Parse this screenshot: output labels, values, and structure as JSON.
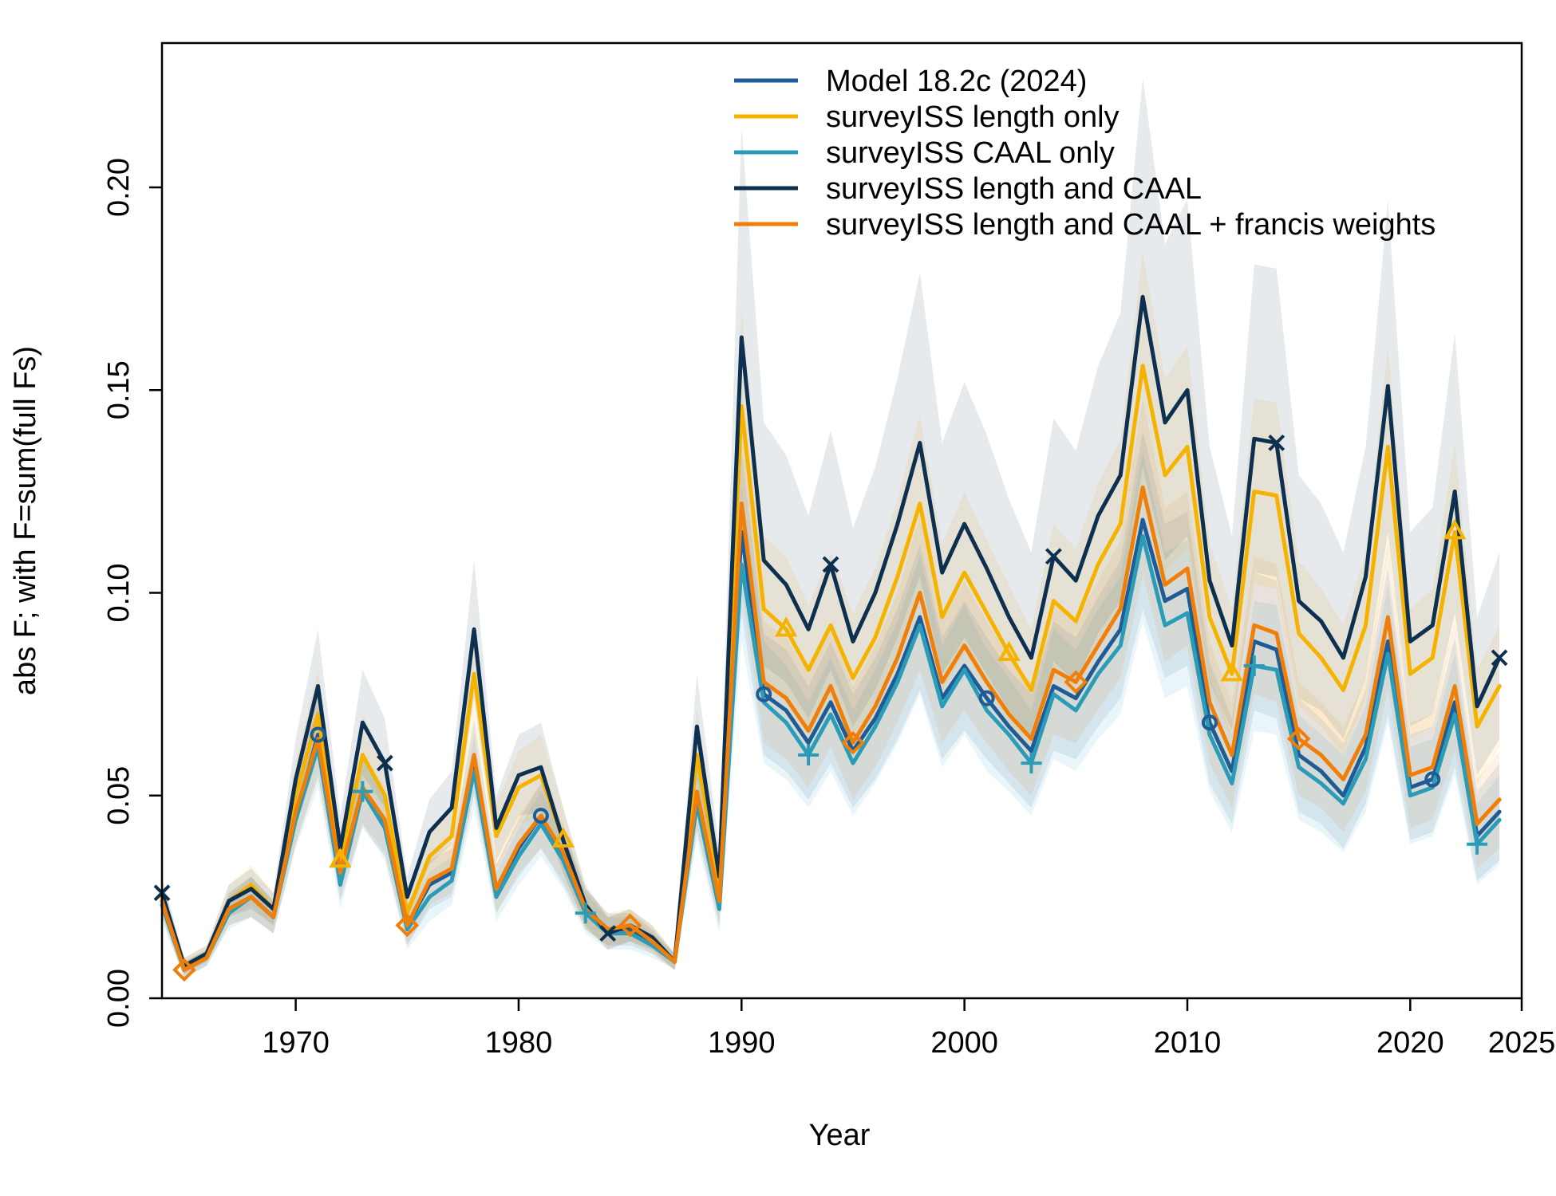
{
  "chart_data": {
    "type": "line",
    "xlabel": "Year",
    "ylabel": "abs F; with F=sum(full Fs)",
    "xlim": [
      1964,
      2025
    ],
    "ylim": [
      0,
      0.2
    ],
    "x_ticks": [
      1970,
      1980,
      1990,
      2000,
      2010,
      2020,
      2025
    ],
    "x_tick_labels": [
      "1970",
      "1980",
      "1990",
      "2000",
      "2010",
      "2020",
      "2025"
    ],
    "y_ticks": [
      0,
      0.05,
      0.1,
      0.15,
      0.2
    ],
    "y_tick_labels": [
      "0.00",
      "0.05",
      "0.10",
      "0.15",
      "0.20"
    ],
    "legend_position": "top-right",
    "grid": false,
    "x": [
      1964,
      1965,
      1966,
      1967,
      1968,
      1969,
      1970,
      1971,
      1972,
      1973,
      1974,
      1975,
      1976,
      1977,
      1978,
      1979,
      1980,
      1981,
      1982,
      1983,
      1984,
      1985,
      1986,
      1987,
      1988,
      1989,
      1990,
      1991,
      1992,
      1993,
      1994,
      1995,
      1996,
      1997,
      1998,
      1999,
      2000,
      2001,
      2002,
      2003,
      2004,
      2005,
      2006,
      2007,
      2008,
      2009,
      2010,
      2011,
      2012,
      2013,
      2014,
      2015,
      2016,
      2017,
      2018,
      2019,
      2020,
      2021,
      2022,
      2023,
      2024
    ],
    "series": [
      {
        "name": "Model 18.2c (2024)",
        "color": "#1f5b94",
        "marker": "circle",
        "values": [
          0.024,
          0.007,
          0.01,
          0.022,
          0.025,
          0.02,
          0.045,
          0.065,
          0.03,
          0.051,
          0.043,
          0.018,
          0.028,
          0.031,
          0.059,
          0.027,
          0.037,
          0.045,
          0.035,
          0.022,
          0.017,
          0.017,
          0.014,
          0.009,
          0.05,
          0.024,
          0.115,
          0.075,
          0.071,
          0.063,
          0.073,
          0.061,
          0.069,
          0.08,
          0.094,
          0.074,
          0.082,
          0.074,
          0.067,
          0.061,
          0.077,
          0.074,
          0.083,
          0.091,
          0.118,
          0.098,
          0.101,
          0.068,
          0.056,
          0.088,
          0.086,
          0.06,
          0.056,
          0.05,
          0.062,
          0.088,
          0.052,
          0.054,
          0.073,
          0.04,
          0.046
        ],
        "band_upper": [
          0.028,
          0.009,
          0.012,
          0.026,
          0.03,
          0.024,
          0.052,
          0.075,
          0.036,
          0.06,
          0.051,
          0.023,
          0.034,
          0.037,
          0.068,
          0.033,
          0.044,
          0.053,
          0.042,
          0.027,
          0.021,
          0.021,
          0.017,
          0.011,
          0.059,
          0.03,
          0.135,
          0.09,
          0.086,
          0.077,
          0.088,
          0.075,
          0.084,
          0.096,
          0.112,
          0.089,
          0.098,
          0.089,
          0.081,
          0.075,
          0.093,
          0.089,
          0.099,
          0.108,
          0.14,
          0.117,
          0.12,
          0.083,
          0.069,
          0.105,
          0.103,
          0.074,
          0.069,
          0.063,
          0.076,
          0.106,
          0.065,
          0.067,
          0.089,
          0.051,
          0.058
        ],
        "band_lower": [
          0.02,
          0.005,
          0.008,
          0.018,
          0.02,
          0.016,
          0.038,
          0.055,
          0.024,
          0.042,
          0.035,
          0.013,
          0.022,
          0.025,
          0.05,
          0.021,
          0.03,
          0.037,
          0.028,
          0.017,
          0.013,
          0.013,
          0.011,
          0.007,
          0.041,
          0.018,
          0.095,
          0.06,
          0.056,
          0.049,
          0.058,
          0.047,
          0.054,
          0.064,
          0.076,
          0.059,
          0.066,
          0.059,
          0.053,
          0.047,
          0.061,
          0.059,
          0.067,
          0.074,
          0.096,
          0.079,
          0.082,
          0.053,
          0.043,
          0.071,
          0.069,
          0.046,
          0.043,
          0.037,
          0.048,
          0.07,
          0.039,
          0.041,
          0.057,
          0.029,
          0.034
        ]
      },
      {
        "name": "surveyISS length only",
        "color": "#f5b300",
        "marker": "triangle",
        "values": [
          0.025,
          0.008,
          0.011,
          0.024,
          0.028,
          0.022,
          0.05,
          0.07,
          0.034,
          0.06,
          0.05,
          0.021,
          0.035,
          0.04,
          0.08,
          0.04,
          0.052,
          0.055,
          0.039,
          0.022,
          0.016,
          0.018,
          0.015,
          0.009,
          0.06,
          0.028,
          0.146,
          0.096,
          0.091,
          0.081,
          0.092,
          0.079,
          0.089,
          0.104,
          0.122,
          0.094,
          0.105,
          0.095,
          0.085,
          0.076,
          0.098,
          0.093,
          0.107,
          0.117,
          0.156,
          0.129,
          0.136,
          0.094,
          0.08,
          0.125,
          0.124,
          0.09,
          0.084,
          0.076,
          0.092,
          0.136,
          0.08,
          0.084,
          0.115,
          0.067,
          0.077
        ],
        "band_upper": [
          0.029,
          0.01,
          0.013,
          0.028,
          0.033,
          0.026,
          0.058,
          0.081,
          0.041,
          0.07,
          0.059,
          0.026,
          0.042,
          0.047,
          0.092,
          0.048,
          0.061,
          0.065,
          0.047,
          0.027,
          0.02,
          0.022,
          0.018,
          0.011,
          0.071,
          0.035,
          0.17,
          0.114,
          0.109,
          0.097,
          0.11,
          0.095,
          0.106,
          0.123,
          0.144,
          0.112,
          0.125,
          0.113,
          0.102,
          0.091,
          0.117,
          0.111,
          0.127,
          0.138,
          0.184,
          0.153,
          0.161,
          0.112,
          0.096,
          0.148,
          0.147,
          0.108,
          0.101,
          0.092,
          0.11,
          0.161,
          0.096,
          0.101,
          0.137,
          0.081,
          0.092
        ],
        "band_lower": [
          0.021,
          0.006,
          0.009,
          0.02,
          0.023,
          0.018,
          0.042,
          0.059,
          0.027,
          0.05,
          0.041,
          0.016,
          0.028,
          0.033,
          0.068,
          0.032,
          0.043,
          0.045,
          0.031,
          0.017,
          0.012,
          0.014,
          0.012,
          0.007,
          0.049,
          0.021,
          0.122,
          0.078,
          0.073,
          0.065,
          0.074,
          0.063,
          0.072,
          0.085,
          0.1,
          0.076,
          0.085,
          0.077,
          0.068,
          0.061,
          0.079,
          0.075,
          0.087,
          0.096,
          0.128,
          0.105,
          0.111,
          0.076,
          0.064,
          0.102,
          0.101,
          0.072,
          0.067,
          0.06,
          0.074,
          0.111,
          0.064,
          0.067,
          0.093,
          0.053,
          0.062
        ]
      },
      {
        "name": "surveyISS CAAL only",
        "color": "#2b9cb8",
        "marker": "plus",
        "values": [
          0.023,
          0.007,
          0.01,
          0.021,
          0.025,
          0.02,
          0.044,
          0.062,
          0.028,
          0.051,
          0.042,
          0.017,
          0.025,
          0.029,
          0.056,
          0.025,
          0.035,
          0.043,
          0.034,
          0.021,
          0.016,
          0.016,
          0.013,
          0.009,
          0.048,
          0.022,
          0.107,
          0.073,
          0.068,
          0.06,
          0.07,
          0.058,
          0.067,
          0.078,
          0.092,
          0.072,
          0.081,
          0.071,
          0.065,
          0.058,
          0.075,
          0.071,
          0.08,
          0.087,
          0.114,
          0.092,
          0.095,
          0.065,
          0.053,
          0.082,
          0.081,
          0.057,
          0.053,
          0.048,
          0.059,
          0.085,
          0.05,
          0.052,
          0.07,
          0.038,
          0.044
        ],
        "band_upper": [
          0.027,
          0.009,
          0.012,
          0.025,
          0.03,
          0.024,
          0.051,
          0.072,
          0.034,
          0.059,
          0.05,
          0.022,
          0.031,
          0.035,
          0.065,
          0.031,
          0.042,
          0.051,
          0.041,
          0.026,
          0.02,
          0.02,
          0.016,
          0.011,
          0.057,
          0.028,
          0.126,
          0.088,
          0.082,
          0.073,
          0.084,
          0.071,
          0.081,
          0.093,
          0.109,
          0.087,
          0.097,
          0.086,
          0.079,
          0.071,
          0.091,
          0.086,
          0.096,
          0.104,
          0.135,
          0.11,
          0.113,
          0.079,
          0.065,
          0.098,
          0.097,
          0.07,
          0.065,
          0.06,
          0.072,
          0.102,
          0.062,
          0.064,
          0.085,
          0.048,
          0.055
        ],
        "band_lower": [
          0.019,
          0.005,
          0.008,
          0.017,
          0.02,
          0.016,
          0.037,
          0.052,
          0.022,
          0.043,
          0.034,
          0.012,
          0.019,
          0.023,
          0.047,
          0.019,
          0.028,
          0.035,
          0.027,
          0.016,
          0.012,
          0.012,
          0.01,
          0.007,
          0.039,
          0.016,
          0.088,
          0.058,
          0.054,
          0.047,
          0.056,
          0.045,
          0.053,
          0.063,
          0.075,
          0.057,
          0.065,
          0.056,
          0.051,
          0.045,
          0.059,
          0.056,
          0.064,
          0.07,
          0.093,
          0.074,
          0.077,
          0.051,
          0.041,
          0.066,
          0.065,
          0.044,
          0.041,
          0.036,
          0.046,
          0.068,
          0.038,
          0.04,
          0.055,
          0.028,
          0.033
        ]
      },
      {
        "name": "surveyISS length and CAAL",
        "color": "#0d3050",
        "marker": "x",
        "values": [
          0.026,
          0.008,
          0.011,
          0.024,
          0.027,
          0.022,
          0.054,
          0.077,
          0.037,
          0.068,
          0.058,
          0.025,
          0.041,
          0.047,
          0.091,
          0.042,
          0.055,
          0.057,
          0.039,
          0.023,
          0.016,
          0.018,
          0.015,
          0.009,
          0.067,
          0.03,
          0.163,
          0.108,
          0.102,
          0.091,
          0.107,
          0.088,
          0.1,
          0.117,
          0.137,
          0.105,
          0.117,
          0.106,
          0.094,
          0.084,
          0.109,
          0.103,
          0.119,
          0.129,
          0.173,
          0.142,
          0.15,
          0.103,
          0.087,
          0.138,
          0.137,
          0.098,
          0.093,
          0.084,
          0.104,
          0.151,
          0.088,
          0.092,
          0.125,
          0.072,
          0.084
        ],
        "band_upper": [
          0.03,
          0.01,
          0.013,
          0.028,
          0.032,
          0.026,
          0.064,
          0.091,
          0.045,
          0.081,
          0.069,
          0.03,
          0.049,
          0.056,
          0.108,
          0.05,
          0.065,
          0.068,
          0.047,
          0.028,
          0.02,
          0.022,
          0.018,
          0.011,
          0.08,
          0.037,
          0.215,
          0.142,
          0.134,
          0.119,
          0.14,
          0.116,
          0.131,
          0.153,
          0.179,
          0.137,
          0.152,
          0.139,
          0.123,
          0.11,
          0.143,
          0.135,
          0.156,
          0.169,
          0.227,
          0.186,
          0.197,
          0.136,
          0.114,
          0.181,
          0.18,
          0.129,
          0.122,
          0.11,
          0.136,
          0.197,
          0.115,
          0.121,
          0.164,
          0.094,
          0.11
        ],
        "band_lower": [
          0.022,
          0.006,
          0.009,
          0.02,
          0.022,
          0.018,
          0.044,
          0.063,
          0.029,
          0.055,
          0.047,
          0.02,
          0.033,
          0.038,
          0.074,
          0.034,
          0.045,
          0.046,
          0.031,
          0.018,
          0.012,
          0.014,
          0.012,
          0.007,
          0.054,
          0.023,
          0.124,
          0.082,
          0.078,
          0.069,
          0.081,
          0.067,
          0.076,
          0.089,
          0.104,
          0.08,
          0.089,
          0.08,
          0.071,
          0.064,
          0.083,
          0.078,
          0.09,
          0.098,
          0.131,
          0.108,
          0.114,
          0.078,
          0.066,
          0.105,
          0.104,
          0.074,
          0.071,
          0.064,
          0.079,
          0.115,
          0.067,
          0.07,
          0.095,
          0.055,
          0.064
        ]
      },
      {
        "name": "surveyISS length and CAAL + francis weights",
        "color": "#f07f09",
        "marker": "diamond",
        "values": [
          0.024,
          0.007,
          0.01,
          0.022,
          0.025,
          0.02,
          0.046,
          0.064,
          0.031,
          0.052,
          0.044,
          0.018,
          0.029,
          0.032,
          0.06,
          0.027,
          0.038,
          0.045,
          0.036,
          0.022,
          0.017,
          0.018,
          0.014,
          0.009,
          0.051,
          0.024,
          0.122,
          0.078,
          0.074,
          0.066,
          0.077,
          0.063,
          0.072,
          0.084,
          0.1,
          0.078,
          0.087,
          0.078,
          0.07,
          0.064,
          0.081,
          0.078,
          0.087,
          0.096,
          0.126,
          0.102,
          0.106,
          0.073,
          0.06,
          0.092,
          0.09,
          0.064,
          0.06,
          0.054,
          0.065,
          0.094,
          0.055,
          0.057,
          0.077,
          0.043,
          0.049
        ],
        "band_upper": [
          0.028,
          0.009,
          0.012,
          0.026,
          0.03,
          0.024,
          0.054,
          0.074,
          0.037,
          0.061,
          0.052,
          0.023,
          0.035,
          0.038,
          0.069,
          0.033,
          0.045,
          0.053,
          0.043,
          0.027,
          0.021,
          0.022,
          0.017,
          0.011,
          0.06,
          0.03,
          0.143,
          0.093,
          0.089,
          0.08,
          0.092,
          0.077,
          0.087,
          0.1,
          0.119,
          0.093,
          0.103,
          0.093,
          0.084,
          0.078,
          0.097,
          0.093,
          0.103,
          0.113,
          0.148,
          0.121,
          0.125,
          0.088,
          0.073,
          0.109,
          0.107,
          0.078,
          0.073,
          0.067,
          0.079,
          0.112,
          0.068,
          0.07,
          0.093,
          0.054,
          0.061
        ],
        "band_lower": [
          0.02,
          0.005,
          0.008,
          0.018,
          0.02,
          0.016,
          0.038,
          0.054,
          0.025,
          0.043,
          0.036,
          0.013,
          0.023,
          0.026,
          0.051,
          0.021,
          0.031,
          0.037,
          0.029,
          0.017,
          0.013,
          0.014,
          0.011,
          0.007,
          0.042,
          0.018,
          0.101,
          0.063,
          0.059,
          0.052,
          0.062,
          0.049,
          0.057,
          0.068,
          0.081,
          0.063,
          0.071,
          0.063,
          0.056,
          0.05,
          0.065,
          0.063,
          0.071,
          0.079,
          0.104,
          0.083,
          0.087,
          0.058,
          0.047,
          0.075,
          0.073,
          0.05,
          0.047,
          0.041,
          0.051,
          0.076,
          0.042,
          0.044,
          0.061,
          0.032,
          0.037
        ]
      }
    ],
    "marker_years": [
      [
        1971,
        1981,
        1991,
        2001,
        2011,
        2021
      ],
      [
        1972,
        1982,
        1992,
        2002,
        2012,
        2022
      ],
      [
        1973,
        1983,
        1993,
        2003,
        2013,
        2023
      ],
      [
        1964,
        1974,
        1984,
        1994,
        2004,
        2014,
        2024
      ],
      [
        1965,
        1975,
        1985,
        1995,
        2005,
        2015
      ]
    ]
  }
}
